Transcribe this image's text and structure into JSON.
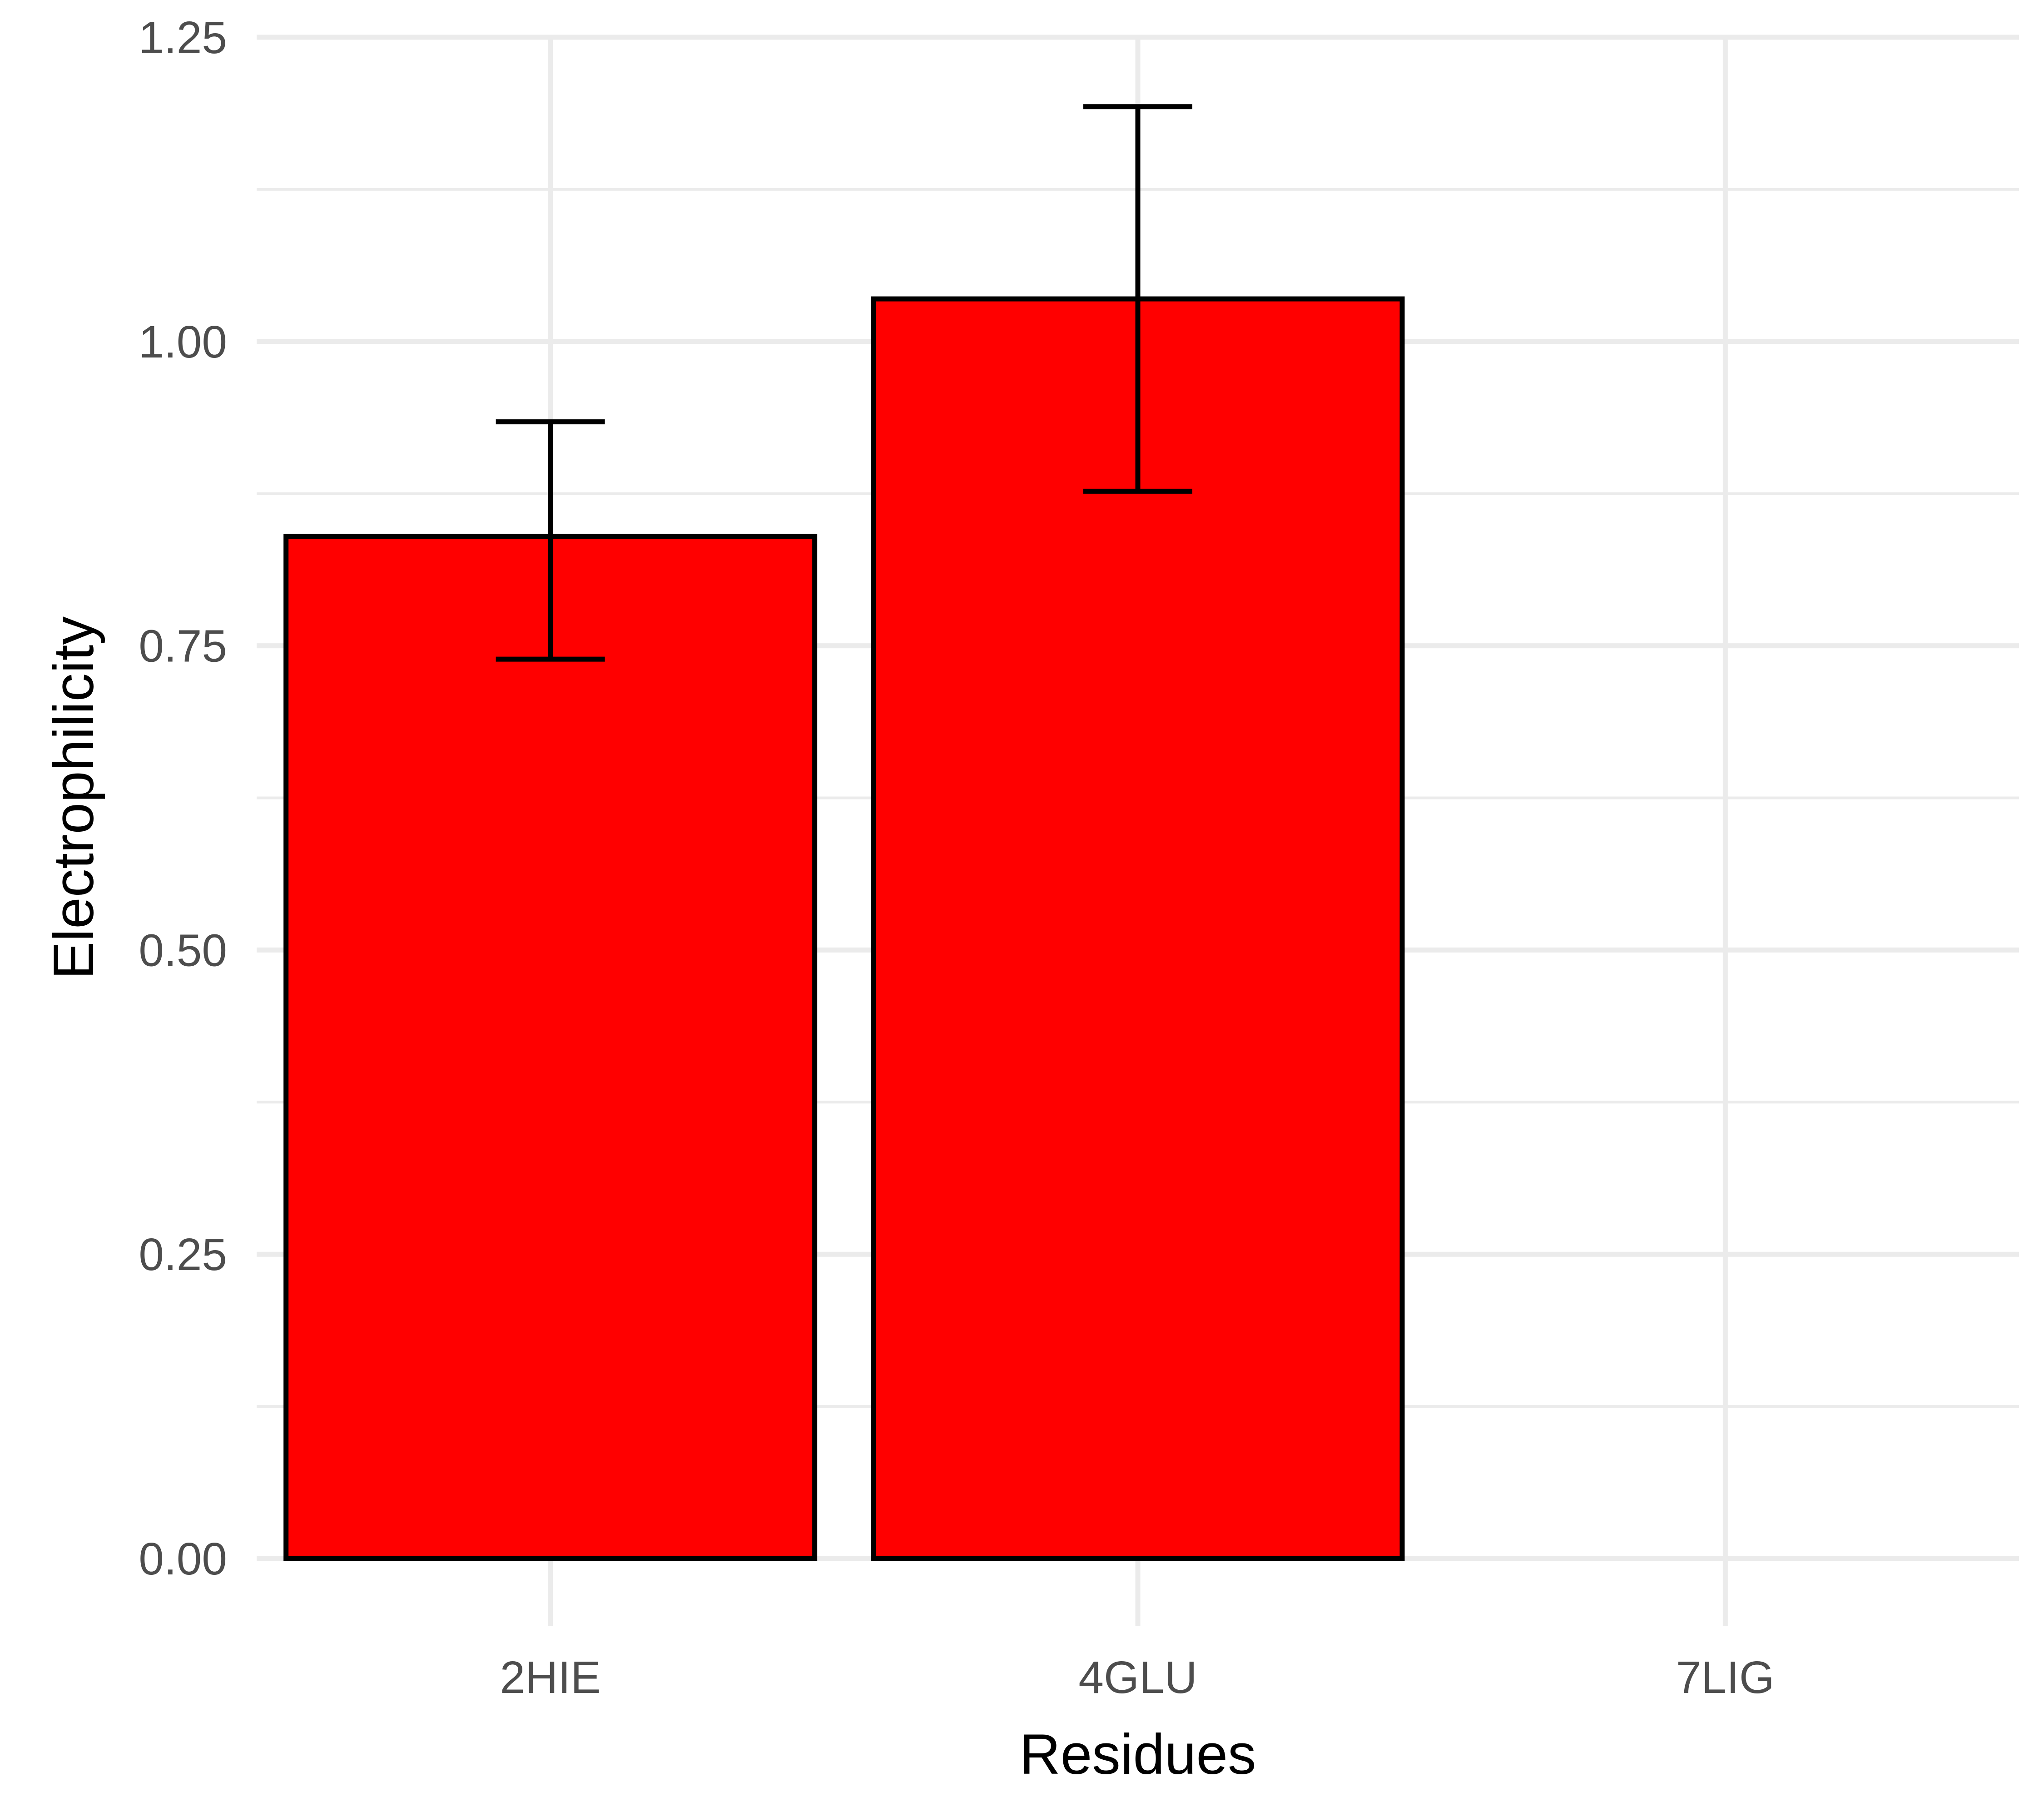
{
  "chart_data": {
    "type": "bar",
    "xlabel": "Residues",
    "ylabel": "Electrophilicity",
    "categories": [
      "2HIE",
      "4GLU",
      "7LIG"
    ],
    "values": [
      0.84,
      1.035,
      0.0
    ],
    "error_low": [
      0.739,
      0.877,
      0.0
    ],
    "error_high": [
      0.934,
      1.193,
      0.0
    ],
    "ylim": [
      -0.08,
      1.25
    ],
    "y_ticks": [
      0.0,
      0.25,
      0.5,
      0.75,
      1.0,
      1.25
    ],
    "y_tick_labels": [
      "0.00",
      "0.25",
      "0.50",
      "0.75",
      "1.00",
      "1.25"
    ],
    "bar_fill": "#ff0000",
    "bar_outline": "#000000",
    "grid": true,
    "legend": "none"
  }
}
